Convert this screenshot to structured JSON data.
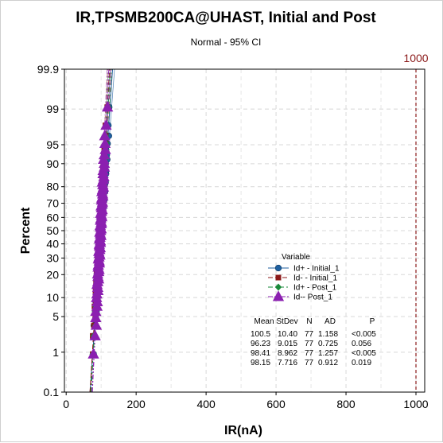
{
  "chart_data": {
    "type": "probability-plot",
    "title": "IR,TPSMB200CA@UHAST, Initial and Post",
    "subtitle": "Normal - 95% CI",
    "xlabel": "IR(nA)",
    "ylabel": "Percent",
    "xlim": [
      -5,
      1025
    ],
    "x_ticks": [
      0,
      200,
      400,
      600,
      800,
      1000
    ],
    "x_tick_labels": [
      "0",
      "200",
      "400",
      "600",
      "800",
      "1000"
    ],
    "y_scale": "normal-probability",
    "ylim": [
      0.1,
      99.9
    ],
    "y_ticks": [
      0.1,
      1,
      5,
      10,
      20,
      30,
      40,
      50,
      60,
      70,
      80,
      90,
      95,
      99,
      99.9
    ],
    "y_tick_labels": [
      "0.1",
      "1",
      "5",
      "10",
      "20",
      "30",
      "40",
      "50",
      "60",
      "70",
      "80",
      "90",
      "95",
      "99",
      "99.9"
    ],
    "grid": true,
    "reference_line": {
      "x": 1000,
      "label": "1000",
      "color": "#8b1a1a"
    },
    "legend": {
      "title": "Variable",
      "placement": "right-center",
      "entries": [
        "Id+ - Initial_1",
        "Id- - Initial_1",
        "Id+ - Post_1",
        "Id-- Post_1"
      ]
    },
    "series": [
      {
        "name": "Id+ - Initial_1",
        "marker": "circle",
        "color": "#1f5f9f",
        "line_style": "solid",
        "mean": 100.5,
        "stdev": 10.4,
        "n": 77,
        "ad": 1.158,
        "p": "<0.005"
      },
      {
        "name": "Id- - Initial_1",
        "marker": "square",
        "color": "#8b1a1a",
        "line_style": "dash",
        "mean": 96.23,
        "stdev": 9.015,
        "n": 77,
        "ad": 0.725,
        "p": "0.056"
      },
      {
        "name": "Id+ - Post_1",
        "marker": "diamond",
        "color": "#1a8a3a",
        "line_style": "dashdot",
        "mean": 98.41,
        "stdev": 8.962,
        "n": 77,
        "ad": 1.257,
        "p": "<0.005"
      },
      {
        "name": "Id-- Post_1",
        "marker": "triangle",
        "color": "#8b1fb0",
        "line_style": "dashdotdot",
        "mean": 98.15,
        "stdev": 7.716,
        "n": 77,
        "ad": 0.912,
        "p": "0.019"
      }
    ],
    "stats_table": {
      "headers": [
        "Mean",
        "StDev",
        "N",
        "AD",
        "P"
      ],
      "rows": [
        [
          "100.5",
          "10.40",
          "77",
          "1.158",
          "<0.005"
        ],
        [
          "96.23",
          "9.015",
          "77",
          "0.725",
          "0.056"
        ],
        [
          "98.41",
          "8.962",
          "77",
          "1.257",
          "<0.005"
        ],
        [
          "98.15",
          "7.716",
          "77",
          "0.912",
          "0.019"
        ]
      ]
    }
  }
}
